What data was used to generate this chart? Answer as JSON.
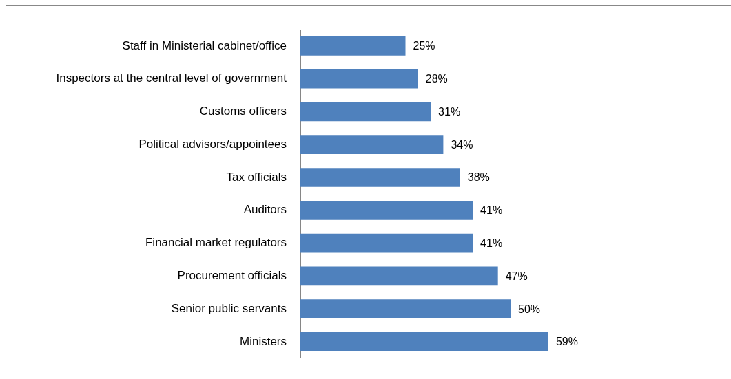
{
  "chart_data": {
    "type": "bar",
    "orientation": "horizontal",
    "categories": [
      "Staff in Ministerial cabinet/office",
      "Inspectors at the central level of government",
      "Customs officers",
      "Political advisors/appointees",
      "Tax officials",
      "Auditors",
      "Financial market regulators",
      "Procurement officials",
      "Senior public servants",
      "Ministers"
    ],
    "values": [
      25,
      28,
      31,
      34,
      38,
      41,
      41,
      47,
      50,
      59
    ],
    "value_labels": [
      "25%",
      "28%",
      "31%",
      "34%",
      "38%",
      "41%",
      "41%",
      "47%",
      "50%",
      "59%"
    ],
    "color": "#4f81bd",
    "legend": false,
    "tick_labels": "y"
  }
}
